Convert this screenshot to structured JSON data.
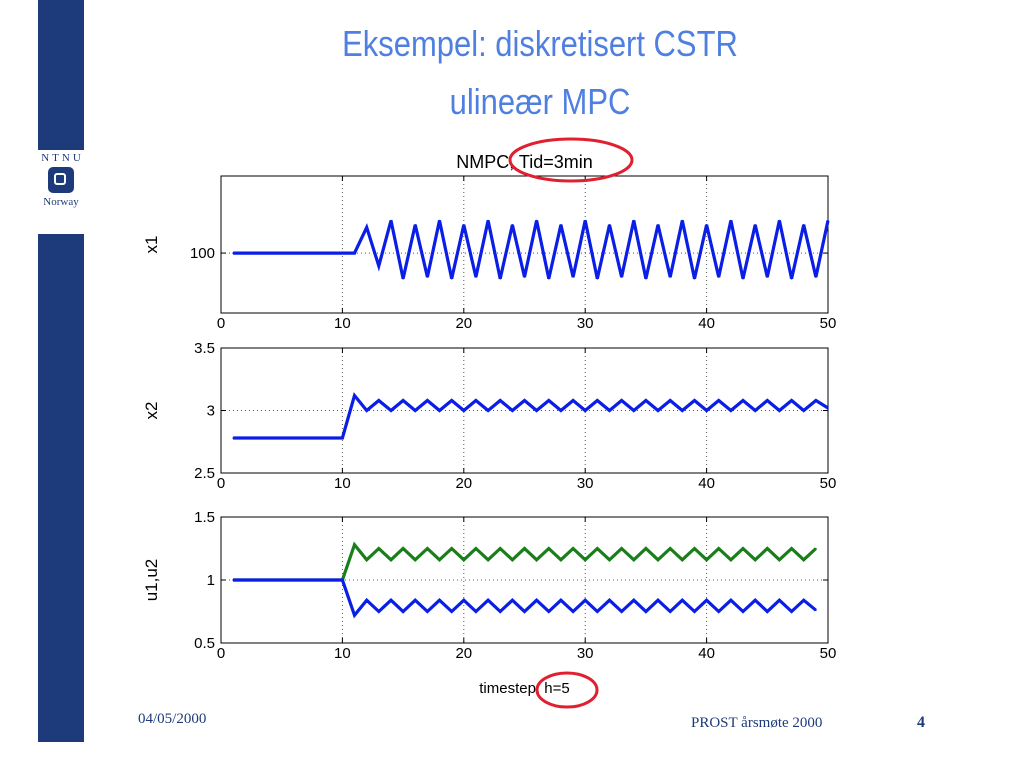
{
  "slide": {
    "title_line1": "Eksempel: diskretisert CSTR",
    "title_line2": "ulineær MPC",
    "date": "04/05/2000",
    "footer": "PROST årsmøte 2000",
    "page": "4"
  },
  "logo": {
    "top_text": "NTNU",
    "bottom_text": "Norway",
    "icon": "ntnu-logo-icon"
  },
  "colors": {
    "sidebar": "#1d3b7a",
    "title": "#4f7fe0",
    "series_blue": "#0a1ee6",
    "series_green": "#1a7f1a",
    "highlight": "#e02030"
  },
  "chart_data": [
    {
      "type": "line",
      "title": "NMPC, Tid=3min",
      "xlabel": "",
      "ylabel": "x1",
      "xlim": [
        0,
        50
      ],
      "xticks": [
        0,
        10,
        20,
        30,
        40,
        50
      ],
      "yticks": [
        100
      ],
      "ylim": [
        99.3,
        100.9
      ],
      "grid": "dotted",
      "series": [
        {
          "color": "#0a1ee6",
          "x": [
            1,
            2,
            3,
            4,
            5,
            6,
            7,
            8,
            9,
            10,
            11,
            12,
            13,
            14,
            15,
            16,
            17,
            18,
            19,
            20,
            21,
            22,
            23,
            24,
            25,
            26,
            27,
            28,
            29,
            30,
            31,
            32,
            33,
            34,
            35,
            36,
            37,
            38,
            39,
            40,
            41,
            42,
            43,
            44,
            45,
            46,
            47,
            48,
            49,
            50
          ],
          "y": [
            100,
            100,
            100,
            100,
            100,
            100,
            100,
            100,
            100,
            100,
            100,
            100.3,
            99.85,
            100.38,
            99.7,
            100.33,
            99.72,
            100.38,
            99.7,
            100.33,
            99.72,
            100.38,
            99.7,
            100.33,
            99.72,
            100.38,
            99.7,
            100.33,
            99.72,
            100.38,
            99.7,
            100.33,
            99.72,
            100.38,
            99.7,
            100.33,
            99.72,
            100.38,
            99.7,
            100.33,
            99.72,
            100.38,
            99.7,
            100.33,
            99.72,
            100.38,
            99.7,
            100.33,
            99.72,
            100.38
          ]
        }
      ]
    },
    {
      "type": "line",
      "title": "",
      "xlabel": "",
      "ylabel": "x2",
      "xlim": [
        0,
        50
      ],
      "xticks": [
        0,
        10,
        20,
        30,
        40,
        50
      ],
      "ylim": [
        2.5,
        3.5
      ],
      "yticks": [
        2.5,
        3,
        3.5
      ],
      "grid": "dotted",
      "series": [
        {
          "color": "#0a1ee6",
          "x": [
            1,
            2,
            3,
            4,
            5,
            6,
            7,
            8,
            9,
            10,
            11,
            12,
            13,
            14,
            15,
            16,
            17,
            18,
            19,
            20,
            21,
            22,
            23,
            24,
            25,
            26,
            27,
            28,
            29,
            30,
            31,
            32,
            33,
            34,
            35,
            36,
            37,
            38,
            39,
            40,
            41,
            42,
            43,
            44,
            45,
            46,
            47,
            48,
            49,
            50
          ],
          "y": [
            2.78,
            2.78,
            2.78,
            2.78,
            2.78,
            2.78,
            2.78,
            2.78,
            2.78,
            2.78,
            3.12,
            3.0,
            3.08,
            3.0,
            3.08,
            3.0,
            3.08,
            3.0,
            3.08,
            3.0,
            3.08,
            3.0,
            3.08,
            3.0,
            3.08,
            3.0,
            3.08,
            3.0,
            3.08,
            3.0,
            3.08,
            3.0,
            3.08,
            3.0,
            3.08,
            3.0,
            3.08,
            3.0,
            3.08,
            3.0,
            3.08,
            3.0,
            3.08,
            3.0,
            3.08,
            3.0,
            3.08,
            3.0,
            3.08,
            3.02
          ]
        }
      ]
    },
    {
      "type": "line",
      "title": "",
      "xlabel": "timestep, h=5",
      "ylabel": "u1,u2",
      "xlim": [
        0,
        50
      ],
      "xticks": [
        0,
        10,
        20,
        30,
        40,
        50
      ],
      "ylim": [
        0.5,
        1.5
      ],
      "yticks": [
        0.5,
        1,
        1.5
      ],
      "grid": "dotted",
      "series": [
        {
          "color": "#1a7f1a",
          "x": [
            1,
            2,
            3,
            4,
            5,
            6,
            7,
            8,
            9,
            10,
            11,
            12,
            13,
            14,
            15,
            16,
            17,
            18,
            19,
            20,
            21,
            22,
            23,
            24,
            25,
            26,
            27,
            28,
            29,
            30,
            31,
            32,
            33,
            34,
            35,
            36,
            37,
            38,
            39,
            40,
            41,
            42,
            43,
            44,
            45,
            46,
            47,
            48,
            49
          ],
          "y": [
            1,
            1,
            1,
            1,
            1,
            1,
            1,
            1,
            1,
            1,
            1.28,
            1.16,
            1.25,
            1.16,
            1.25,
            1.16,
            1.25,
            1.16,
            1.25,
            1.16,
            1.25,
            1.16,
            1.25,
            1.16,
            1.25,
            1.16,
            1.25,
            1.16,
            1.25,
            1.16,
            1.25,
            1.16,
            1.25,
            1.16,
            1.25,
            1.16,
            1.25,
            1.16,
            1.25,
            1.16,
            1.25,
            1.16,
            1.25,
            1.16,
            1.25,
            1.16,
            1.25,
            1.16,
            1.25
          ]
        },
        {
          "color": "#0a1ee6",
          "x": [
            1,
            2,
            3,
            4,
            5,
            6,
            7,
            8,
            9,
            10,
            11,
            12,
            13,
            14,
            15,
            16,
            17,
            18,
            19,
            20,
            21,
            22,
            23,
            24,
            25,
            26,
            27,
            28,
            29,
            30,
            31,
            32,
            33,
            34,
            35,
            36,
            37,
            38,
            39,
            40,
            41,
            42,
            43,
            44,
            45,
            46,
            47,
            48,
            49
          ],
          "y": [
            1,
            1,
            1,
            1,
            1,
            1,
            1,
            1,
            1,
            1,
            0.72,
            0.84,
            0.75,
            0.84,
            0.75,
            0.84,
            0.75,
            0.84,
            0.75,
            0.84,
            0.75,
            0.84,
            0.75,
            0.84,
            0.75,
            0.84,
            0.75,
            0.84,
            0.75,
            0.84,
            0.75,
            0.84,
            0.75,
            0.84,
            0.75,
            0.84,
            0.75,
            0.84,
            0.75,
            0.84,
            0.75,
            0.84,
            0.75,
            0.84,
            0.75,
            0.84,
            0.75,
            0.84,
            0.76
          ]
        }
      ]
    }
  ]
}
